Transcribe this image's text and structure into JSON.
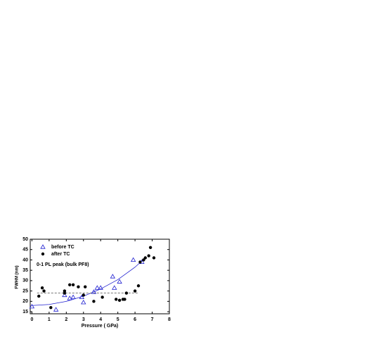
{
  "chart_data": {
    "type": "scatter",
    "xlabel": "Pressure ( GPa)",
    "ylabel": "FWHM (nm)",
    "annotation": "0-1 PL peak (bulk PF8)",
    "xlim": [
      -0.1,
      8
    ],
    "ylim": [
      14,
      50
    ],
    "xticks": [
      0,
      1,
      2,
      3,
      4,
      5,
      6,
      7,
      8
    ],
    "yticks": [
      15,
      20,
      25,
      30,
      35,
      40,
      45,
      50
    ],
    "legend": "top-left",
    "series": [
      {
        "name": "before TC",
        "color": "#1f1fd0",
        "marker": "triangle",
        "x": [
          0,
          1.4,
          1.9,
          2.2,
          2.4,
          2.9,
          3.0,
          3.6,
          3.8,
          4.0,
          4.7,
          4.8,
          5.1,
          5.9,
          6.4
        ],
        "values": [
          17.5,
          16,
          23,
          21.5,
          22,
          22,
          19.5,
          24.5,
          26.5,
          26.5,
          32,
          26.5,
          29.5,
          40,
          39
        ]
      },
      {
        "name": "after TC",
        "color": "#000000",
        "marker": "circle",
        "x": [
          0.4,
          0.6,
          0.7,
          1.1,
          1.9,
          1.9,
          2.2,
          2.4,
          2.7,
          3.1,
          3.0,
          3.6,
          4.1,
          4.9,
          5.1,
          5.3,
          5.4,
          5.5,
          6.0,
          6.2,
          6.3,
          6.5,
          6.6,
          6.8,
          6.9,
          7.1
        ],
        "values": [
          22.5,
          26.5,
          25,
          17,
          25,
          24,
          28,
          28,
          27,
          27,
          23,
          20,
          22,
          21,
          20.5,
          21,
          21,
          24,
          25,
          27.5,
          39,
          40,
          41,
          42,
          46,
          41
        ]
      }
    ],
    "lines": [
      {
        "color": "#1f1fd0",
        "dash": false,
        "x": [
          0,
          1,
          2,
          3,
          4,
          5,
          6,
          6.6
        ],
        "values": [
          18,
          18.5,
          20,
          22.5,
          26,
          30.5,
          36.5,
          41
        ]
      },
      {
        "color": "#666666",
        "dash": true,
        "x": [
          0.3,
          6.2
        ],
        "values": [
          24,
          24
        ]
      }
    ]
  }
}
